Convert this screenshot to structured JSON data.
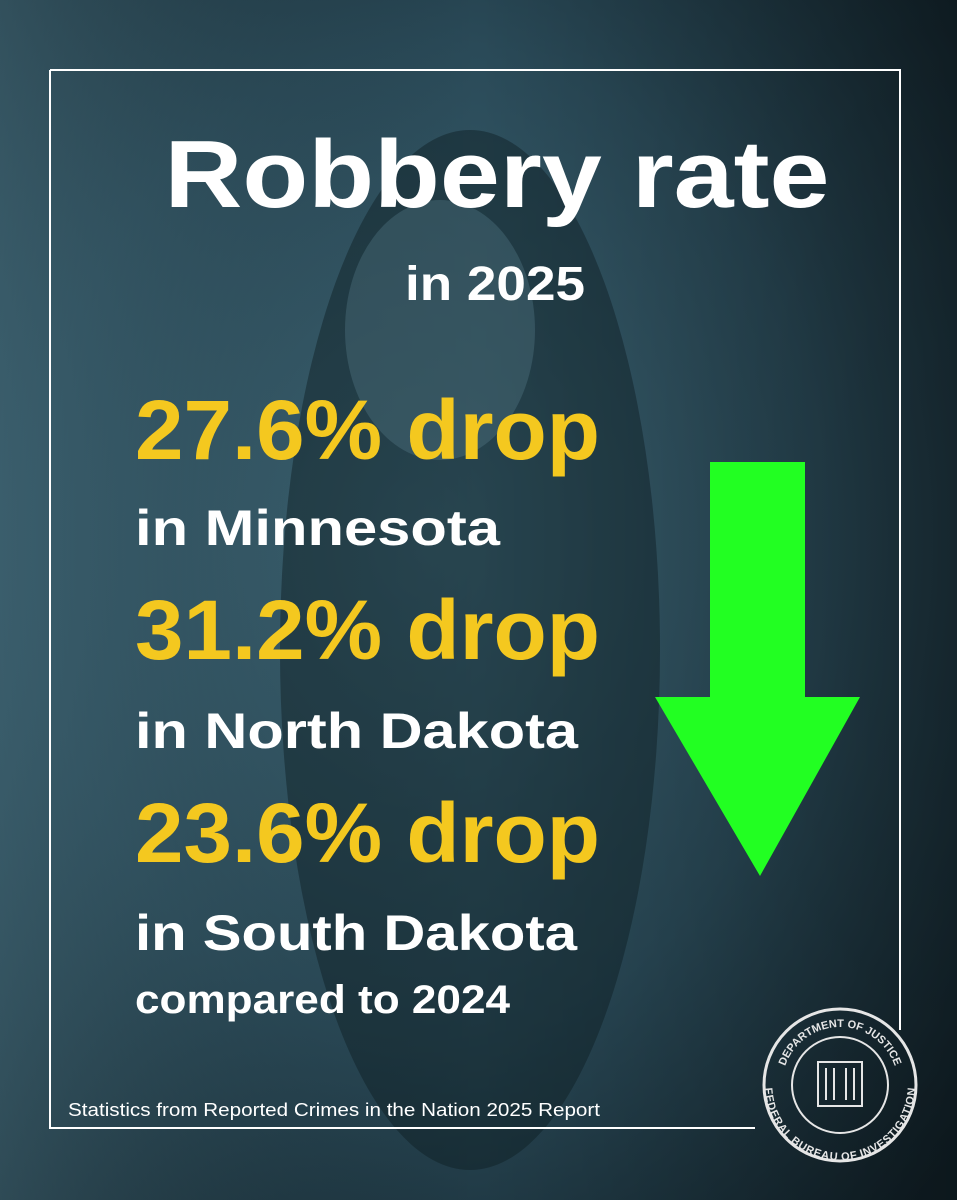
{
  "header": {
    "title": "Robbery rate",
    "subtitle": "in 2025"
  },
  "stats": [
    {
      "headline": "27.6% drop",
      "place": "in Minnesota"
    },
    {
      "headline": "31.2% drop",
      "place": "in North Dakota"
    },
    {
      "headline": "23.6% drop",
      "place": "in South Dakota"
    }
  ],
  "comparison": "compared to 2024",
  "source": "Statistics from Reported Crimes in the Nation 2025 Report",
  "seal": {
    "top_text": "DEPARTMENT OF JUSTICE",
    "bottom_text": "FEDERAL BUREAU OF INVESTIGATION"
  }
}
